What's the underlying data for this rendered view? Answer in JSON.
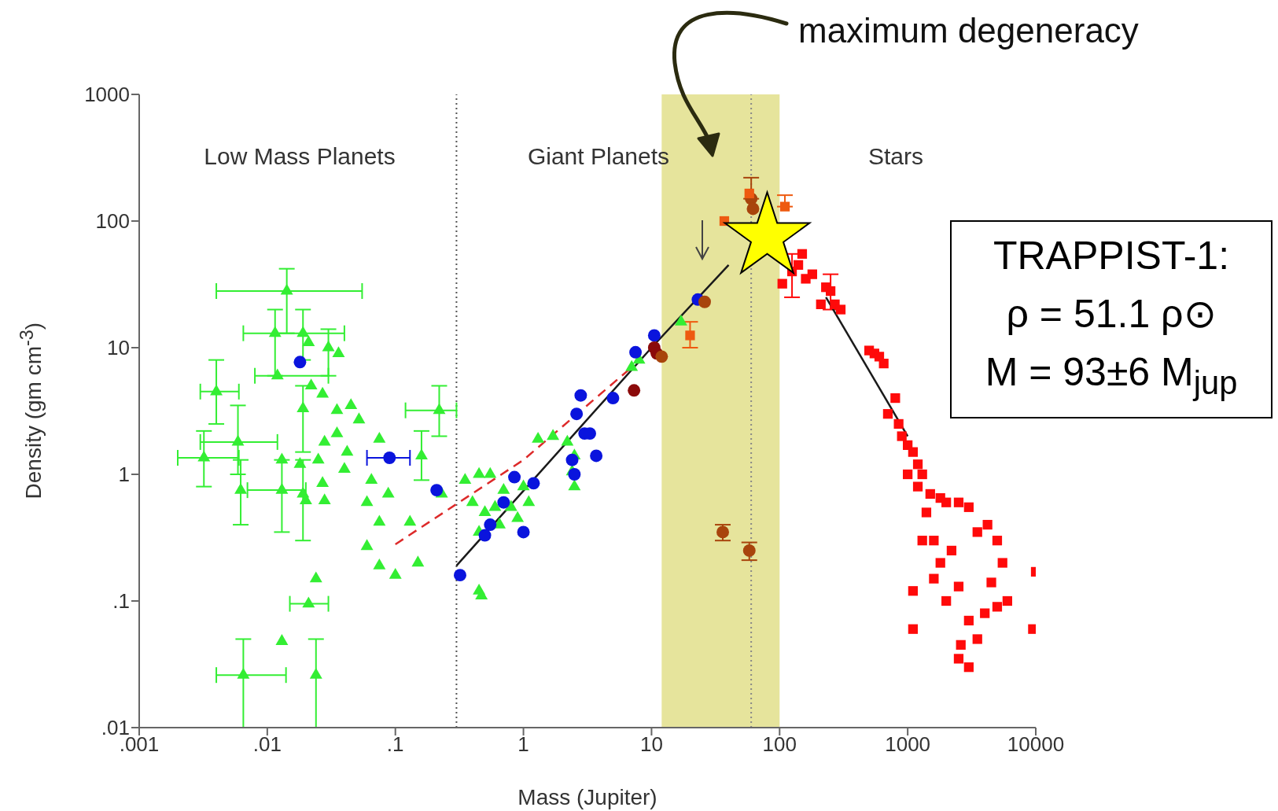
{
  "chart_data": {
    "type": "scatter",
    "xlabel": "Mass (Jupiter)",
    "ylabel": "Density (gm cm$^{-3}$)",
    "log": "xy",
    "grid": false,
    "legend": false,
    "xlim": [
      0.001,
      10000
    ],
    "ylim": [
      0.01,
      1000
    ],
    "xticks": [
      {
        "value": 0.001,
        "label": ".001"
      },
      {
        "value": 0.01,
        "label": ".01"
      },
      {
        "value": 0.1,
        "label": ".1"
      },
      1,
      10,
      100,
      1000,
      10000
    ],
    "yticks": [
      {
        "value": 0.01,
        "label": ".01"
      },
      {
        "value": 0.1,
        "label": ".1"
      },
      1,
      10,
      100,
      1000
    ],
    "annotations": [
      "Low Mass Planets",
      "Giant Planets",
      "Stars",
      "maximum degeneracy",
      "TRAPPIST-1:",
      "ρ = 51.1 ρ⊙",
      "M = 93±6 M$_{jup}$"
    ],
    "ref_lines": [
      {
        "axis": "x",
        "value": 0.3,
        "color": "#555555",
        "line_style": "dotted"
      },
      {
        "axis": "x",
        "value": 60,
        "color": "#888888",
        "line_style": "dotted"
      }
    ],
    "bands": [
      {
        "axis": "x",
        "from": 12,
        "to": 100,
        "color": "#e6e49c"
      }
    ],
    "series": [
      {
        "marker": "triangle",
        "color": "#33ee33",
        "x": [
          0.0142,
          0.0115,
          0.019,
          0.021,
          0.03,
          0.036,
          0.012,
          0.004,
          0.022,
          0.027,
          0.019,
          0.035,
          0.045,
          0.052,
          0.0059,
          0.0032,
          0.035,
          0.028,
          0.042,
          0.018,
          0.025,
          0.04,
          0.013,
          0.0062,
          0.013,
          0.019,
          0.027,
          0.02,
          0.028,
          0.06,
          0.075,
          0.065,
          0.088,
          0.075,
          0.22,
          0.16,
          0.06,
          0.075,
          0.1,
          0.13,
          0.15,
          0.23,
          0.024,
          0.021,
          0.013,
          0.0065,
          0.024,
          0.35,
          0.45,
          0.55,
          0.4,
          0.5,
          0.6,
          0.7,
          0.45,
          0.65,
          0.8,
          0.9,
          1.1,
          1.3,
          1.7,
          2.2,
          2.5,
          2.4,
          2.5,
          0.45,
          0.47,
          1.0,
          7,
          8,
          17
        ],
        "values": [
          28,
          13,
          13,
          11,
          10,
          9,
          6,
          4.5,
          5,
          4.3,
          3.3,
          3.2,
          3.5,
          2.7,
          1.8,
          1.35,
          2.1,
          1.8,
          1.5,
          1.2,
          1.3,
          1.1,
          1.3,
          0.75,
          0.75,
          0.7,
          0.85,
          0.62,
          0.62,
          0.6,
          0.42,
          0.9,
          0.7,
          1.9,
          3.2,
          1.4,
          0.27,
          0.19,
          0.16,
          0.42,
          0.2,
          0.7,
          0.15,
          0.095,
          0.048,
          0.026,
          0.026,
          0.9,
          1.0,
          1.0,
          0.6,
          0.5,
          0.55,
          0.75,
          0.35,
          0.4,
          0.55,
          0.45,
          0.6,
          1.9,
          2.0,
          1.8,
          1.4,
          1.05,
          0.8,
          0.12,
          0.11,
          0.8,
          7,
          8,
          16
        ],
        "errors": [
          [
            13,
            42
          ],
          [
            6,
            20
          ],
          [
            8,
            20
          ],
          null,
          [
            6,
            14
          ],
          null,
          null,
          [
            2.5,
            8
          ],
          null,
          null,
          [
            1.5,
            5
          ],
          null,
          null,
          null,
          [
            1.0,
            3.5
          ],
          [
            0.8,
            2.2
          ],
          null,
          null,
          null,
          null,
          null,
          null,
          null,
          [
            0.4,
            1.3
          ],
          [
            0.35,
            1.3
          ],
          [
            0.3,
            1.3
          ],
          null,
          null,
          null,
          null,
          null,
          null,
          null,
          null,
          [
            2,
            5
          ],
          [
            0.9,
            2.2
          ],
          null,
          null,
          null,
          null,
          null,
          null,
          null,
          null,
          null,
          [
            0.01,
            0.05
          ],
          [
            0.01,
            0.05
          ],
          null,
          null,
          null,
          null,
          null,
          null,
          null,
          null,
          null,
          null,
          null,
          null,
          null,
          null,
          null,
          null,
          null,
          null,
          null,
          null,
          null,
          null,
          null,
          null
        ],
        "xerrors": [
          [
            0.004,
            0.055
          ],
          [
            0.0065,
            0.04
          ],
          null,
          null,
          null,
          null,
          [
            0.008,
            0.03
          ],
          [
            0.003,
            0.006
          ],
          null,
          null,
          null,
          null,
          null,
          null,
          [
            0.003,
            0.012
          ],
          [
            0.002,
            0.006
          ],
          null,
          null,
          null,
          null,
          null,
          null,
          null,
          null,
          [
            0.007,
            0.02
          ],
          null,
          null,
          null,
          null,
          null,
          null,
          null,
          null,
          null,
          [
            0.12,
            0.3
          ],
          null,
          null,
          null,
          null,
          null,
          null,
          null,
          null,
          [
            0.015,
            0.03
          ],
          null,
          [
            0.004,
            0.014
          ],
          null,
          null,
          null,
          null,
          null,
          null,
          null,
          null,
          null,
          null,
          null,
          null,
          null,
          null,
          null,
          null,
          null,
          null,
          null,
          null,
          null,
          null,
          null,
          null,
          null
        ]
      },
      {
        "type": "scatter",
        "marker": "circle",
        "color": "#0a14dd",
        "x": [
          0.018,
          0.09,
          0.21,
          0.32,
          0.5,
          0.55,
          0.7,
          0.85,
          1.0,
          1.2,
          2.4,
          2.6,
          2.8,
          3.0,
          3.3,
          3.7,
          5.0,
          7.5,
          10.5,
          23,
          2.5
        ],
        "values": [
          7.7,
          1.35,
          0.75,
          0.16,
          0.33,
          0.4,
          0.6,
          0.95,
          0.35,
          0.85,
          1.3,
          3.0,
          4.2,
          2.1,
          2.1,
          1.4,
          4.0,
          9.2,
          12.5,
          24,
          1.0
        ],
        "xerrors": [
          null,
          [
            0.06,
            0.13
          ],
          null,
          null,
          null,
          null,
          null,
          null,
          null,
          null,
          null,
          null,
          null,
          null,
          null,
          null,
          null,
          null,
          null,
          null,
          null
        ]
      },
      {
        "type": "scatter",
        "marker": "circle",
        "color": "#8b0a0a",
        "x": [
          7.3,
          10.5,
          11
        ],
        "values": [
          4.6,
          10,
          9
        ]
      },
      {
        "type": "scatter",
        "marker": "circle",
        "color": "#a8440c",
        "x": [
          12,
          26,
          36,
          58,
          60,
          62
        ],
        "values": [
          8.5,
          23,
          0.35,
          0.25,
          150,
          125
        ],
        "errors": [
          null,
          null,
          [
            0.3,
            0.4
          ],
          [
            0.21,
            0.29
          ],
          [
            150,
            220
          ],
          null
        ]
      },
      {
        "type": "scatter",
        "marker": "square",
        "color": "#ee5a10",
        "x": [
          20,
          37,
          110,
          58
        ],
        "values": [
          12.5,
          100,
          130,
          165
        ],
        "errors": [
          [
            10,
            16
          ],
          null,
          [
            130,
            160
          ],
          null
        ]
      },
      {
        "type": "scatter",
        "marker": "square",
        "color": "#ff0a0a",
        "x": [
          105,
          150,
          125,
          140,
          160,
          180,
          230,
          210,
          250,
          270,
          300,
          500,
          550,
          600,
          650,
          800,
          700,
          850,
          900,
          1000,
          1100,
          1200,
          1300,
          1000,
          1200,
          1500,
          1800,
          2000,
          2500,
          3000,
          1400,
          1600,
          1300,
          1600,
          1800,
          2200,
          2500,
          3000,
          2600,
          2500,
          3000,
          4000,
          5000,
          4200,
          5000,
          5500,
          6000,
          9500,
          10000,
          1100,
          1100,
          4500,
          3500,
          2000,
          3500
        ],
        "values": [
          32,
          55,
          40,
          45,
          35,
          38,
          30,
          22,
          28,
          22,
          20,
          9.5,
          9,
          8.5,
          7.5,
          4,
          3,
          2.5,
          2,
          1.7,
          1.5,
          1.2,
          1,
          1,
          0.8,
          0.7,
          0.65,
          0.6,
          0.6,
          0.55,
          0.5,
          0.3,
          0.3,
          0.15,
          0.2,
          0.25,
          0.13,
          0.07,
          0.045,
          0.035,
          0.03,
          0.08,
          0.09,
          0.4,
          0.3,
          0.2,
          0.1,
          0.06,
          0.17,
          0.12,
          0.06,
          0.14,
          0.35,
          0.1,
          0.05
        ],
        "errors": [
          null,
          null,
          [
            25,
            55
          ],
          null,
          null,
          null,
          null,
          null,
          [
            20,
            38
          ],
          null,
          null,
          null,
          null,
          null,
          null,
          null,
          null,
          null,
          null,
          null,
          null,
          null,
          null,
          null,
          null,
          null,
          null,
          null,
          null,
          null,
          null,
          null,
          null,
          null,
          null,
          null,
          null,
          null,
          null,
          null,
          null,
          null,
          null,
          null,
          null,
          null,
          null,
          null,
          null,
          null,
          null,
          null,
          null,
          null,
          null
        ]
      },
      {
        "type": "line",
        "color": "#1a1a1a",
        "line_style": "solid",
        "x": [
          0.3,
          10,
          40
        ],
        "values": [
          0.19,
          10,
          45
        ]
      },
      {
        "type": "line",
        "color": "#1a1a1a",
        "line_style": "solid",
        "x": [
          230,
          1000
        ],
        "values": [
          25,
          2
        ]
      },
      {
        "type": "line",
        "color": "#dd2a2a",
        "line_style": "dashed",
        "x": [
          0.1,
          1,
          7
        ],
        "values": [
          0.28,
          1.3,
          7
        ]
      },
      {
        "type": "scatter",
        "marker": "star",
        "color": "#ffff00",
        "x": [
          80
        ],
        "values": [
          75
        ]
      }
    ]
  }
}
